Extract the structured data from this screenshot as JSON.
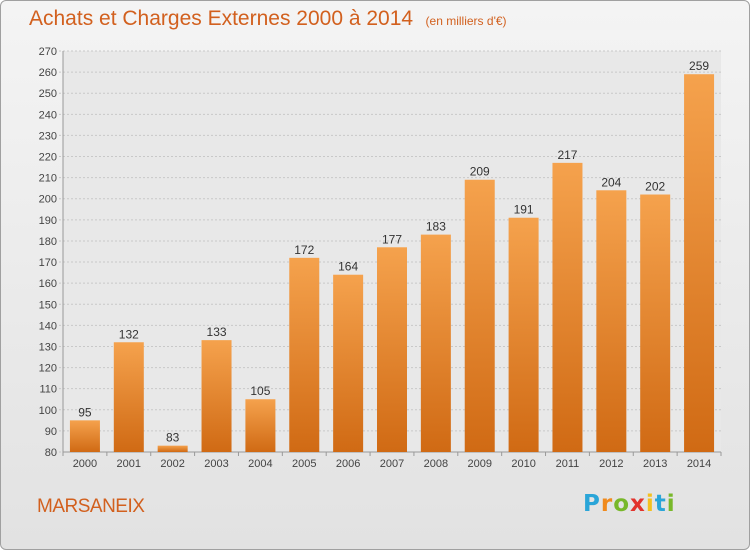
{
  "chart_data": {
    "type": "bar",
    "title": "Achats et Charges Externes 2000 à 2014",
    "subtitle": "(en milliers d'€)",
    "categories": [
      "2000",
      "2001",
      "2002",
      "2003",
      "2004",
      "2005",
      "2006",
      "2007",
      "2008",
      "2009",
      "2010",
      "2011",
      "2012",
      "2013",
      "2014"
    ],
    "values": [
      95,
      132,
      83,
      133,
      105,
      172,
      164,
      177,
      183,
      209,
      191,
      217,
      204,
      202,
      259
    ],
    "ylim": [
      80,
      270
    ],
    "yticks": [
      80,
      90,
      100,
      110,
      120,
      130,
      140,
      150,
      160,
      170,
      180,
      190,
      200,
      210,
      220,
      230,
      240,
      250,
      260,
      270
    ],
    "grid": true,
    "bar_color_top": "#f5a24d",
    "bar_color_bottom": "#d06a14"
  },
  "footer": {
    "commune": "MARSANEIX",
    "logo_letters": [
      {
        "ch": "P",
        "color": "#2aa5d8"
      },
      {
        "ch": "r",
        "color": "#f08a1c"
      },
      {
        "ch": "o",
        "color": "#78b82a"
      },
      {
        "ch": "x",
        "color": "#e2332c"
      },
      {
        "ch": "i",
        "color": "#f4c01e"
      },
      {
        "ch": "t",
        "color": "#2aa5d8"
      },
      {
        "ch": "i",
        "color": "#78b82a"
      }
    ]
  }
}
